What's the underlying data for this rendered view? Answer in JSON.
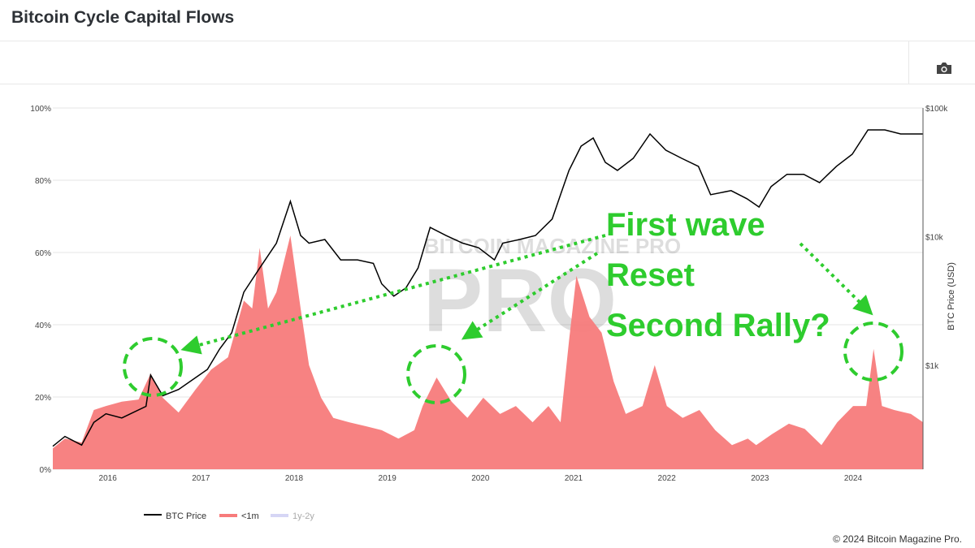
{
  "header": {
    "title": "Bitcoin Cycle Capital Flows",
    "toolbar_icon": "camera-icon"
  },
  "footer": {
    "copyright": "© 2024 Bitcoin Magazine Pro."
  },
  "chart_data": {
    "type": "area",
    "title": "Bitcoin Cycle Capital Flows",
    "xlabel": "",
    "ylabel_left": "",
    "ylabel_right": "BTC Price (USD)",
    "xlim": [
      2015.41,
      2024.75
    ],
    "ylim_left": [
      0,
      100
    ],
    "ylim_right_log": [
      100,
      100000
    ],
    "x_ticks": [
      "2016",
      "2017",
      "2018",
      "2019",
      "2020",
      "2021",
      "2022",
      "2023",
      "2024"
    ],
    "y_left_ticks": [
      "0%",
      "20%",
      "40%",
      "60%",
      "80%",
      "100%"
    ],
    "y_right_ticks": [
      {
        "label": "$1k",
        "value": 1000
      },
      {
        "label": "$10k",
        "value": 10000
      },
      {
        "label": "$100k",
        "value": 100000
      }
    ],
    "grid": true,
    "legend_placement": "bottom-left",
    "legend": [
      {
        "name": "BTC Price",
        "color": "#000000",
        "type": "line"
      },
      {
        "name": "<1m",
        "color": "#f77b7b",
        "type": "area"
      },
      {
        "name": "1y-2y",
        "color": "#d6d6f5",
        "type": "area",
        "hidden": true
      }
    ],
    "series": [
      {
        "name": "<1m",
        "unit": "%",
        "color": "#f77b7b",
        "points": [
          [
            2015.41,
            5.8
          ],
          [
            2015.54,
            8.5
          ],
          [
            2015.72,
            7.4
          ],
          [
            2015.85,
            16.4
          ],
          [
            2015.98,
            17.5
          ],
          [
            2016.15,
            18.7
          ],
          [
            2016.33,
            19.3
          ],
          [
            2016.46,
            26.5
          ],
          [
            2016.59,
            19.8
          ],
          [
            2016.76,
            15.7
          ],
          [
            2016.94,
            22
          ],
          [
            2017.11,
            27.6
          ],
          [
            2017.29,
            31
          ],
          [
            2017.46,
            46.7
          ],
          [
            2017.55,
            44.5
          ],
          [
            2017.63,
            61.3
          ],
          [
            2017.72,
            44.5
          ],
          [
            2017.81,
            49
          ],
          [
            2017.96,
            64.7
          ],
          [
            2018.07,
            44.5
          ],
          [
            2018.16,
            28.8
          ],
          [
            2018.29,
            19.8
          ],
          [
            2018.42,
            14.2
          ],
          [
            2018.59,
            13
          ],
          [
            2018.77,
            11.9
          ],
          [
            2018.94,
            10.8
          ],
          [
            2019.12,
            8.5
          ],
          [
            2019.29,
            10.8
          ],
          [
            2019.38,
            17.5
          ],
          [
            2019.53,
            25.4
          ],
          [
            2019.69,
            18.7
          ],
          [
            2019.86,
            14.2
          ],
          [
            2020.03,
            19.8
          ],
          [
            2020.21,
            15.3
          ],
          [
            2020.38,
            17.5
          ],
          [
            2020.56,
            13
          ],
          [
            2020.73,
            17.5
          ],
          [
            2020.86,
            13
          ],
          [
            2020.95,
            35.5
          ],
          [
            2021.03,
            53.5
          ],
          [
            2021.17,
            42.2
          ],
          [
            2021.3,
            37.8
          ],
          [
            2021.43,
            24.3
          ],
          [
            2021.56,
            15.3
          ],
          [
            2021.74,
            17.5
          ],
          [
            2021.87,
            28.8
          ],
          [
            2022.0,
            17.5
          ],
          [
            2022.17,
            14.2
          ],
          [
            2022.35,
            16.4
          ],
          [
            2022.52,
            10.8
          ],
          [
            2022.7,
            6.7
          ],
          [
            2022.87,
            8.5
          ],
          [
            2022.96,
            6.7
          ],
          [
            2023.13,
            9.7
          ],
          [
            2023.31,
            12.6
          ],
          [
            2023.48,
            11.2
          ],
          [
            2023.66,
            6.7
          ],
          [
            2023.83,
            13
          ],
          [
            2024.0,
            17.5
          ],
          [
            2024.14,
            17.5
          ],
          [
            2024.22,
            33.3
          ],
          [
            2024.31,
            17.5
          ],
          [
            2024.44,
            16.4
          ],
          [
            2024.62,
            15.3
          ],
          [
            2024.75,
            13
          ]
        ]
      },
      {
        "name": "BTC Price",
        "unit": "USD",
        "color": "#000000",
        "points": [
          [
            2015.41,
            235
          ],
          [
            2015.54,
            280
          ],
          [
            2015.72,
            240
          ],
          [
            2015.85,
            360
          ],
          [
            2015.98,
            420
          ],
          [
            2016.15,
            390
          ],
          [
            2016.41,
            480
          ],
          [
            2016.46,
            840
          ],
          [
            2016.59,
            580
          ],
          [
            2016.76,
            650
          ],
          [
            2016.94,
            800
          ],
          [
            2017.07,
            930
          ],
          [
            2017.2,
            1340
          ],
          [
            2017.33,
            1790
          ],
          [
            2017.46,
            3700
          ],
          [
            2017.63,
            5700
          ],
          [
            2017.81,
            8900
          ],
          [
            2017.96,
            18800
          ],
          [
            2018.07,
            10200
          ],
          [
            2018.16,
            8900
          ],
          [
            2018.33,
            9500
          ],
          [
            2018.5,
            6600
          ],
          [
            2018.68,
            6600
          ],
          [
            2018.85,
            6200
          ],
          [
            2018.94,
            4300
          ],
          [
            2019.07,
            3450
          ],
          [
            2019.2,
            4000
          ],
          [
            2019.33,
            5700
          ],
          [
            2019.46,
            11800
          ],
          [
            2019.63,
            10200
          ],
          [
            2019.81,
            8900
          ],
          [
            2019.98,
            8200
          ],
          [
            2020.15,
            6600
          ],
          [
            2020.24,
            8900
          ],
          [
            2020.42,
            9500
          ],
          [
            2020.59,
            10200
          ],
          [
            2020.77,
            13700
          ],
          [
            2020.86,
            21200
          ],
          [
            2020.95,
            32700
          ],
          [
            2021.08,
            50500
          ],
          [
            2021.21,
            58400
          ],
          [
            2021.34,
            37800
          ],
          [
            2021.47,
            32700
          ],
          [
            2021.64,
            40600
          ],
          [
            2021.82,
            62800
          ],
          [
            2021.99,
            47000
          ],
          [
            2022.16,
            40600
          ],
          [
            2022.34,
            35200
          ],
          [
            2022.47,
            21200
          ],
          [
            2022.69,
            22800
          ],
          [
            2022.86,
            19700
          ],
          [
            2022.99,
            17000
          ],
          [
            2023.12,
            24500
          ],
          [
            2023.29,
            30500
          ],
          [
            2023.47,
            30500
          ],
          [
            2023.64,
            26300
          ],
          [
            2023.82,
            35200
          ],
          [
            2023.99,
            43700
          ],
          [
            2024.16,
            67600
          ],
          [
            2024.34,
            67600
          ],
          [
            2024.51,
            62800
          ],
          [
            2024.75,
            62800
          ]
        ]
      }
    ],
    "annotations": {
      "labels": [
        "First wave",
        "Reset",
        "Second Rally?"
      ],
      "color": "#2ecc2e",
      "highlight_circles_years": [
        2016.46,
        2019.53,
        2024.22
      ],
      "watermark": "BITCOIN MAGAZINE PRO"
    }
  }
}
